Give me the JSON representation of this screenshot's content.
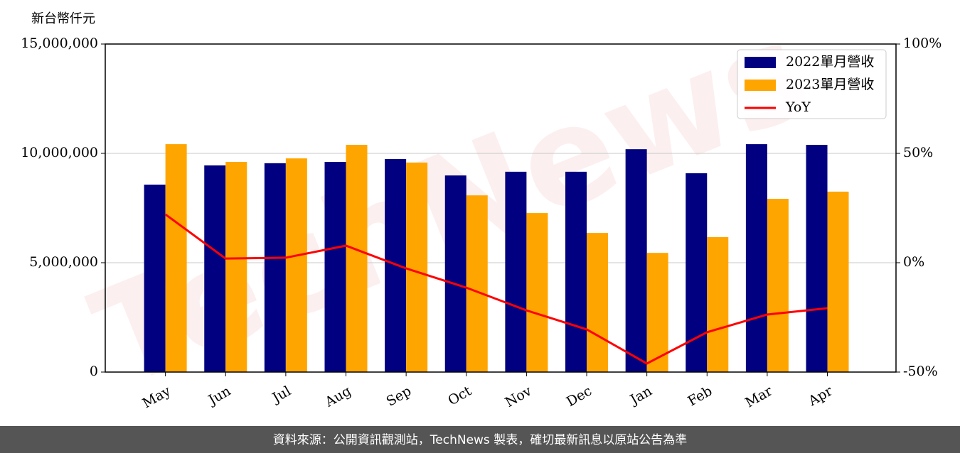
{
  "chart_data": {
    "type": "bar_line",
    "y_axis_label": "新台幣仟元",
    "watermark": "TechNews",
    "footer": "資料來源：公開資訊觀測站，TechNews 製表，確切最新訊息以原站公告為準",
    "categories": [
      "May",
      "Jun",
      "Jul",
      "Aug",
      "Sep",
      "Oct",
      "Nov",
      "Dec",
      "Jan",
      "Feb",
      "Mar",
      "Apr"
    ],
    "series": [
      {
        "name": "2022單月營收",
        "type": "bar",
        "color": "#000080",
        "values": [
          8570000,
          9450000,
          9550000,
          9610000,
          9740000,
          8990000,
          9160000,
          9160000,
          10190000,
          9090000,
          10420000,
          10390000
        ]
      },
      {
        "name": "2023單月營收",
        "type": "bar",
        "color": "#ffa500",
        "values": [
          10420000,
          9610000,
          9770000,
          10390000,
          9580000,
          8080000,
          7270000,
          6360000,
          5450000,
          6170000,
          7920000,
          8250000
        ]
      },
      {
        "name": "YoY",
        "type": "line",
        "color": "#ff0000",
        "axis": "y2",
        "values": [
          22.1,
          1.9,
          2.3,
          7.8,
          -2.6,
          -11.4,
          -21.8,
          -30.5,
          -46.1,
          -31.8,
          -23.7,
          -20.8
        ]
      }
    ],
    "ylim": [
      0,
      15000000
    ],
    "yticks": [
      0,
      {
        "value": 5000000,
        "label": "5,000,000"
      },
      {
        "value": 10000000,
        "label": "10,000,000"
      },
      {
        "value": 15000000,
        "label": "15,000,000"
      }
    ],
    "y2lim": [
      -50,
      100
    ],
    "y2ticks": [
      {
        "value": -50,
        "label": "-50%"
      },
      {
        "value": 0,
        "label": "0%"
      },
      {
        "value": 50,
        "label": "50%"
      },
      {
        "value": 100,
        "label": "100%"
      }
    ],
    "grid": true,
    "legend": "upper right"
  }
}
